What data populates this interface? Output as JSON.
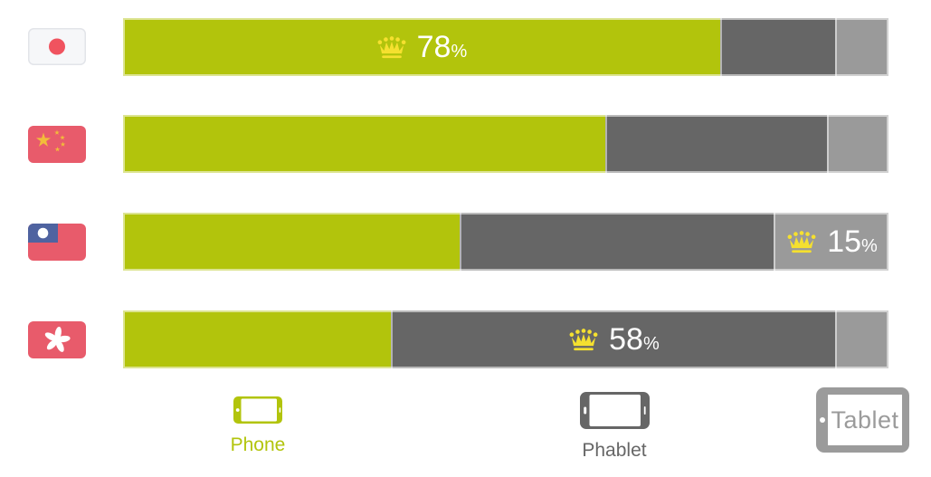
{
  "chart_data": {
    "type": "bar",
    "variant": "horizontal-stacked-100-percent",
    "title": "",
    "categories": [
      "Japan",
      "China",
      "Taiwan",
      "Hong Kong"
    ],
    "series": [
      {
        "name": "Phone",
        "color": "#b2c40c",
        "values": [
          78,
          63,
          44,
          35
        ]
      },
      {
        "name": "Phablet",
        "color": "#666666",
        "values": [
          15,
          29,
          41,
          58
        ]
      },
      {
        "name": "Tablet",
        "color": "#9a9a9a",
        "values": [
          7,
          8,
          15,
          7
        ]
      }
    ],
    "value_labels": [
      {
        "category": "Japan",
        "series": "Phone",
        "text": "78%",
        "marker": "crown"
      },
      {
        "category": "Taiwan",
        "series": "Tablet",
        "text": "15%",
        "marker": "crown"
      },
      {
        "category": "Hong Kong",
        "series": "Phablet",
        "text": "58%",
        "marker": "crown"
      }
    ],
    "legend_position": "bottom",
    "axes": "none",
    "grid": false
  },
  "rows": [
    {
      "country": "Japan",
      "label": {
        "value": "78",
        "unit": "%"
      }
    },
    {
      "country": "China"
    },
    {
      "country": "Taiwan",
      "label": {
        "value": "15",
        "unit": "%"
      }
    },
    {
      "country": "Hong Kong",
      "label": {
        "value": "58",
        "unit": "%"
      }
    }
  ],
  "legend": {
    "items": [
      {
        "label": "Phone",
        "color": "#b2c40c"
      },
      {
        "label": "Phablet",
        "color": "#666666"
      },
      {
        "label": "Tablet",
        "color": "#9b9b9b"
      }
    ]
  },
  "colors": {
    "phone": "#b2c40c",
    "phablet": "#666666",
    "tablet": "#9a9a9a",
    "crown": "#f5e02f",
    "flag_red": "#e85b6b",
    "flag_blue": "#4f63a0",
    "background": "#ffffff"
  }
}
